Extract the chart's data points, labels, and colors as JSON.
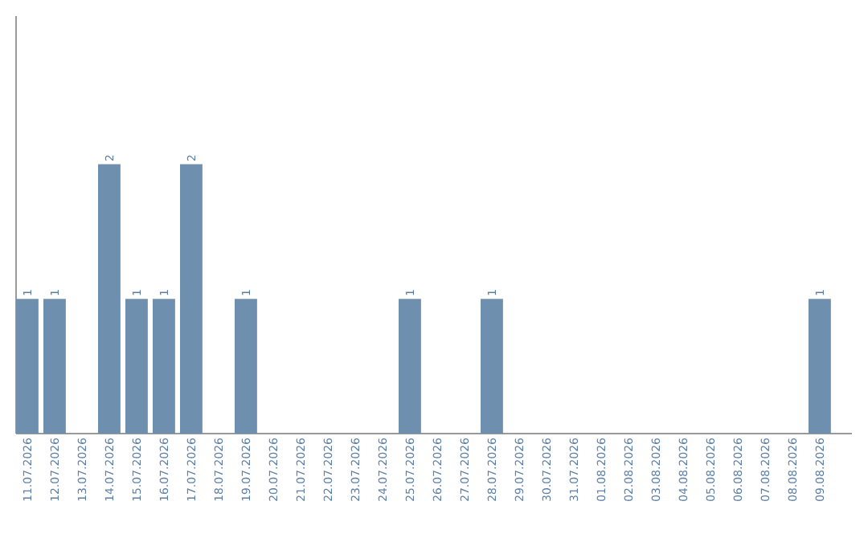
{
  "chart_data": {
    "type": "bar",
    "categories": [
      "11.07.2026",
      "12.07.2026",
      "13.07.2026",
      "14.07.2026",
      "15.07.2026",
      "16.07.2026",
      "17.07.2026",
      "18.07.2026",
      "19.07.2026",
      "20.07.2026",
      "21.07.2026",
      "22.07.2026",
      "23.07.2026",
      "24.07.2026",
      "25.07.2026",
      "26.07.2026",
      "27.07.2026",
      "28.07.2026",
      "29.07.2026",
      "30.07.2026",
      "31.07.2026",
      "01.08.2026",
      "02.08.2026",
      "03.08.2026",
      "04.08.2026",
      "05.08.2026",
      "06.08.2026",
      "07.08.2026",
      "08.08.2026",
      "09.08.2026"
    ],
    "values": [
      1,
      1,
      0,
      2,
      1,
      1,
      2,
      0,
      1,
      0,
      0,
      0,
      0,
      0,
      1,
      0,
      0,
      1,
      0,
      0,
      0,
      0,
      0,
      0,
      0,
      0,
      0,
      0,
      0,
      1
    ],
    "value_labels": [
      "1",
      "1",
      null,
      "2",
      "1",
      "1",
      "2",
      null,
      "1",
      null,
      null,
      null,
      null,
      null,
      "1",
      null,
      null,
      "1",
      null,
      null,
      null,
      null,
      null,
      null,
      null,
      null,
      null,
      null,
      null,
      "1"
    ],
    "color": "#6e8fae",
    "ylim": [
      0,
      3.1
    ],
    "tick_labels": "x"
  }
}
